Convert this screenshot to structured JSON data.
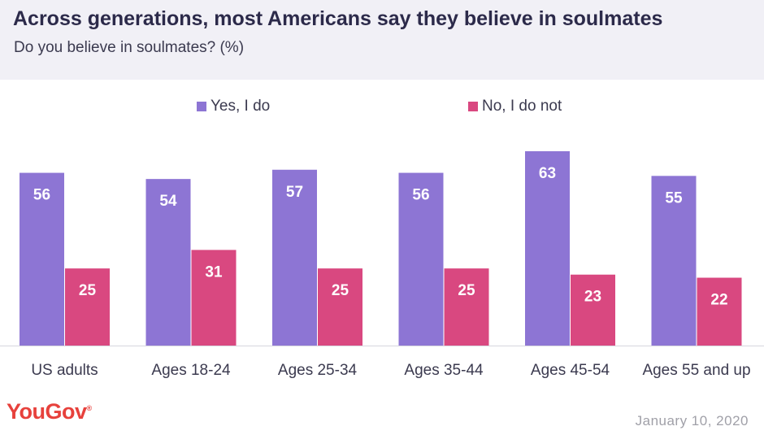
{
  "header": {
    "title": "Across generations, most Americans say they believe in soulmates",
    "subtitle": "Do you believe in soulmates? (%)"
  },
  "footer": {
    "logo": "YouGov",
    "logo_mark": "®",
    "date": "January 10, 2020"
  },
  "colors": {
    "yes": "#8d75d4",
    "no": "#d94880",
    "header_bg": "#f1f0f6"
  },
  "chart_data": {
    "type": "bar",
    "title": "Across generations, most Americans say they believe in soulmates",
    "subtitle": "Do you believe in soulmates? (%)",
    "categories": [
      "US adults",
      "Ages 18-24",
      "Ages 25-34",
      "Ages 35-44",
      "Ages 45-54",
      "Ages 55 and up"
    ],
    "series": [
      {
        "name": "Yes, I do",
        "color": "#8d75d4",
        "values": [
          56,
          54,
          57,
          56,
          63,
          55
        ]
      },
      {
        "name": "No, I do not",
        "color": "#d94880",
        "values": [
          25,
          31,
          25,
          25,
          23,
          22
        ]
      }
    ],
    "ylim": [
      0,
      63
    ],
    "grid": false,
    "legend": "top-center",
    "data_labels": true
  }
}
